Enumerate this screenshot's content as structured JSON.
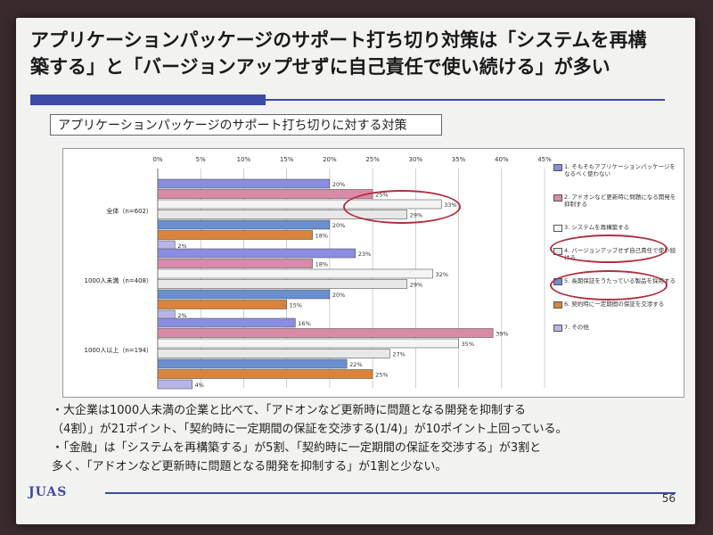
{
  "slide": {
    "title_line1": "アプリケーションパッケージのサポート打ち切り対策は「システムを再構",
    "title_line2": "築する」と「バージョンアップせずに自己責任で使い続ける」が多い",
    "subtitle": "アプリケーションパッケージのサポート打ち切りに対する対策",
    "notes": [
      "・大企業は1000人未満の企業と比べて、「アドオンなど更新時に問題となる開発を抑制する",
      "（4割）」が21ポイント、「契約時に一定期間の保証を交渉する(1/4)」が10ポイント上回っている。",
      "・「金融」は「システムを再構築する」が5割、「契約時に一定期間の保証を交渉する」が3割と",
      "多く、「アドオンなど更新時に問題となる開発を抑制する」が1割と少ない。"
    ],
    "logo": "JUAS",
    "page_number": "56"
  },
  "colors": {
    "accent": "#3c4aa8",
    "highlight": "#b03040"
  },
  "chart_data": {
    "type": "bar",
    "orientation": "horizontal",
    "categories": [
      "全体（n=602）",
      "1000人未満（n=408）",
      "1000人以上（n=194）"
    ],
    "x_ticks": [
      "0%",
      "5%",
      "10%",
      "15%",
      "20%",
      "25%",
      "30%",
      "35%",
      "40%",
      "45%"
    ],
    "xlim": [
      0,
      45
    ],
    "grid": true,
    "legend_position": "right",
    "series": [
      {
        "name": "1. そもそもアプリケーションパッケージをなるべく使わない",
        "color": "#8a8ee0",
        "values": [
          20,
          23,
          16
        ]
      },
      {
        "name": "2. アドオンなど更新時に問題になる開発を抑制する",
        "color": "#d98aa8",
        "values": [
          25,
          18,
          39
        ]
      },
      {
        "name": "3. システムを再構築する",
        "color": "#f4f4f4",
        "values": [
          33,
          32,
          35
        ]
      },
      {
        "name": "4. バージョンアップせず自己責任で使い続ける",
        "color": "#e8e8e8",
        "values": [
          29,
          29,
          27
        ]
      },
      {
        "name": "5. 長期保証をうたっている製品を採用する",
        "color": "#6a8fd0",
        "values": [
          20,
          20,
          22
        ]
      },
      {
        "name": "6. 契約時に一定期間の保証を交渉する",
        "color": "#d9843c",
        "values": [
          18,
          15,
          25
        ]
      },
      {
        "name": "7. その他",
        "color": "#b9b4e8",
        "values": [
          2,
          2,
          4
        ]
      }
    ],
    "value_labels": [
      [
        "20%",
        "25%",
        "33%",
        "29%",
        "20%",
        "18%",
        "2%"
      ],
      [
        "23%",
        "18%",
        "32%",
        "29%",
        "20%",
        "15%",
        "2%"
      ],
      [
        "16%",
        "39%",
        "35%",
        "27%",
        "22%",
        "25%",
        "4%"
      ]
    ]
  }
}
